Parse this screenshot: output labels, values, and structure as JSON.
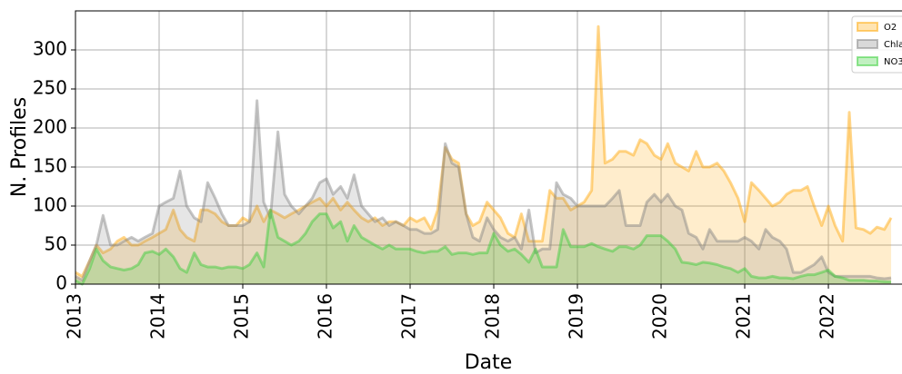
{
  "chart_data": {
    "type": "area",
    "xlabel": "Date",
    "ylabel": "N. Profiles",
    "xlim": [
      2013,
      2022.88
    ],
    "ylim": [
      0,
      350
    ],
    "xticks": [
      2013,
      2014,
      2015,
      2016,
      2017,
      2018,
      2019,
      2020,
      2021,
      2022
    ],
    "yticks": [
      0,
      50,
      100,
      150,
      200,
      250,
      300
    ],
    "grid": true,
    "legend": "upper right",
    "x": [
      2013,
      2013.08,
      2013.17,
      2013.25,
      2013.33,
      2013.42,
      2013.5,
      2013.58,
      2013.67,
      2013.75,
      2013.83,
      2013.92,
      2014,
      2014.08,
      2014.17,
      2014.25,
      2014.33,
      2014.42,
      2014.5,
      2014.58,
      2014.67,
      2014.75,
      2014.83,
      2014.92,
      2015,
      2015.08,
      2015.17,
      2015.25,
      2015.33,
      2015.42,
      2015.5,
      2015.58,
      2015.67,
      2015.75,
      2015.83,
      2015.92,
      2016,
      2016.08,
      2016.17,
      2016.25,
      2016.33,
      2016.42,
      2016.5,
      2016.58,
      2016.67,
      2016.75,
      2016.83,
      2016.92,
      2017,
      2017.08,
      2017.17,
      2017.25,
      2017.33,
      2017.42,
      2017.5,
      2017.58,
      2017.67,
      2017.75,
      2017.83,
      2017.92,
      2018,
      2018.08,
      2018.17,
      2018.25,
      2018.33,
      2018.42,
      2018.5,
      2018.58,
      2018.67,
      2018.75,
      2018.83,
      2018.92,
      2019,
      2019.08,
      2019.17,
      2019.25,
      2019.33,
      2019.42,
      2019.5,
      2019.58,
      2019.67,
      2019.75,
      2019.83,
      2019.92,
      2020,
      2020.08,
      2020.17,
      2020.25,
      2020.33,
      2020.42,
      2020.5,
      2020.58,
      2020.67,
      2020.75,
      2020.83,
      2020.92,
      2021,
      2021.08,
      2021.17,
      2021.25,
      2021.33,
      2021.42,
      2021.5,
      2021.58,
      2021.67,
      2021.75,
      2021.83,
      2021.92,
      2022,
      2022.08,
      2022.17,
      2022.25,
      2022.33,
      2022.42,
      2022.5,
      2022.58,
      2022.67,
      2022.75
    ],
    "series": [
      {
        "name": "O2",
        "color": "#ffa500",
        "values": [
          15,
          10,
          30,
          50,
          40,
          45,
          55,
          60,
          50,
          50,
          55,
          60,
          65,
          70,
          95,
          70,
          60,
          55,
          95,
          95,
          90,
          80,
          75,
          75,
          85,
          80,
          100,
          80,
          95,
          90,
          85,
          90,
          95,
          100,
          105,
          110,
          100,
          110,
          95,
          105,
          95,
          85,
          80,
          85,
          75,
          80,
          80,
          75,
          85,
          80,
          85,
          70,
          95,
          175,
          160,
          155,
          90,
          75,
          80,
          105,
          95,
          85,
          65,
          60,
          90,
          55,
          55,
          55,
          120,
          110,
          110,
          95,
          100,
          105,
          120,
          330,
          155,
          160,
          170,
          170,
          165,
          185,
          180,
          165,
          160,
          180,
          155,
          150,
          145,
          170,
          150,
          150,
          155,
          145,
          130,
          110,
          80,
          130,
          120,
          110,
          100,
          105,
          115,
          120,
          120,
          125,
          100,
          75,
          100,
          75,
          55,
          220,
          72,
          70,
          65,
          73,
          70,
          85
        ]
      },
      {
        "name": "Chla",
        "color": "#808080",
        "values": [
          10,
          5,
          30,
          50,
          88,
          50,
          50,
          55,
          60,
          55,
          60,
          65,
          100,
          105,
          110,
          145,
          100,
          85,
          80,
          130,
          110,
          90,
          75,
          75,
          75,
          80,
          235,
          105,
          85,
          195,
          115,
          100,
          90,
          100,
          110,
          130,
          135,
          115,
          125,
          110,
          140,
          100,
          90,
          80,
          85,
          75,
          80,
          75,
          70,
          70,
          65,
          65,
          70,
          180,
          155,
          150,
          90,
          60,
          55,
          85,
          70,
          60,
          55,
          60,
          45,
          95,
          40,
          45,
          45,
          130,
          115,
          110,
          100,
          100,
          100,
          100,
          100,
          110,
          120,
          75,
          75,
          75,
          105,
          115,
          105,
          115,
          100,
          95,
          65,
          60,
          45,
          70,
          55,
          55,
          55,
          55,
          60,
          55,
          45,
          70,
          60,
          55,
          45,
          15,
          15,
          20,
          25,
          35,
          15,
          10,
          10,
          10,
          10,
          10,
          10,
          8,
          7,
          8
        ]
      },
      {
        "name": "NO3",
        "color": "#32cd32",
        "values": [
          5,
          0,
          20,
          45,
          30,
          22,
          20,
          18,
          20,
          25,
          40,
          42,
          38,
          45,
          35,
          20,
          15,
          40,
          25,
          22,
          22,
          20,
          22,
          22,
          20,
          25,
          40,
          22,
          95,
          60,
          55,
          50,
          55,
          65,
          80,
          90,
          90,
          72,
          80,
          55,
          75,
          60,
          55,
          50,
          45,
          50,
          45,
          45,
          45,
          42,
          40,
          42,
          42,
          48,
          38,
          40,
          40,
          38,
          40,
          40,
          65,
          50,
          42,
          45,
          38,
          28,
          45,
          22,
          22,
          22,
          70,
          48,
          48,
          48,
          52,
          48,
          45,
          42,
          48,
          48,
          45,
          50,
          62,
          62,
          62,
          55,
          45,
          28,
          27,
          25,
          28,
          27,
          25,
          22,
          20,
          15,
          20,
          10,
          8,
          8,
          10,
          8,
          8,
          7,
          10,
          12,
          12,
          15,
          18,
          10,
          8,
          5,
          5,
          5,
          4,
          4,
          3,
          3
        ]
      }
    ]
  }
}
